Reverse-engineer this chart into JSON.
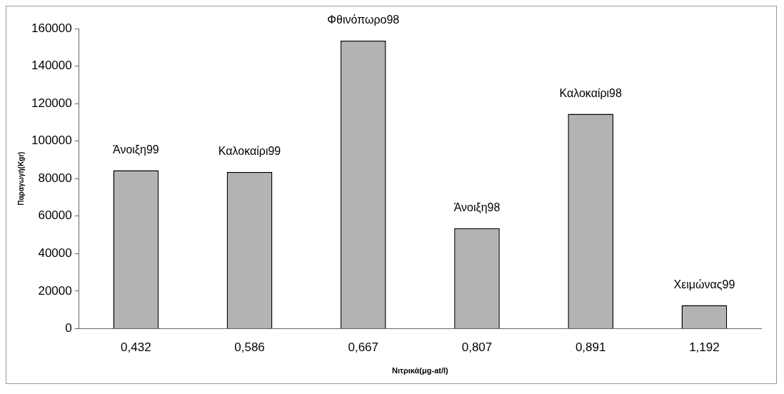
{
  "chart_data": {
    "type": "bar",
    "xlabel": "Νιτρικά(μg-at/l)",
    "ylabel": "Παραγωγή(Kgr)",
    "categories": [
      "0,432",
      "0,586",
      "0,667",
      "0,807",
      "0,891",
      "1,192"
    ],
    "values": [
      84500,
      83500,
      153500,
      53500,
      114500,
      12500
    ],
    "color": "#b3b3b3",
    "ylim": [
      0,
      160000
    ],
    "yticks": [
      0,
      20000,
      40000,
      60000,
      80000,
      100000,
      120000,
      140000,
      160000
    ],
    "grid": false,
    "legend": false,
    "annotations": [
      {
        "text": "Άνοιξη99",
        "x": "0,432",
        "y": 84500
      },
      {
        "text": "Καλοκαίρι99",
        "x": "0,586",
        "y": 83500
      },
      {
        "text": "Φθινόπωρο98",
        "x": "0,667",
        "y": 153500
      },
      {
        "text": "Άνοιξη98",
        "x": "0,807",
        "y": 53500
      },
      {
        "text": "Καλοκαίρι98",
        "x": "0,891",
        "y": 114500
      },
      {
        "text": "Χειμώνας99",
        "x": "1,192",
        "y": 12500
      }
    ]
  }
}
